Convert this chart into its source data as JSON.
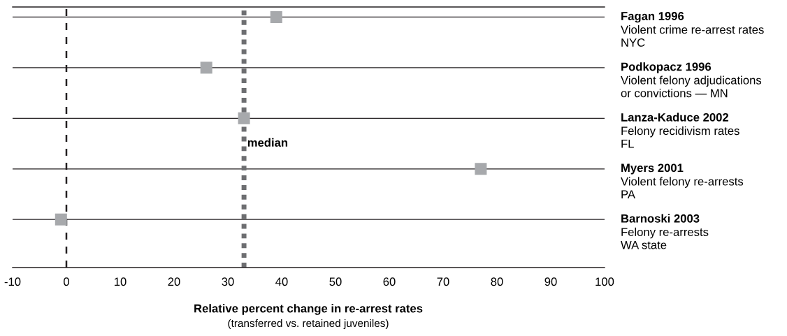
{
  "chart_data": {
    "type": "scatter",
    "orientation": "horizontal",
    "xlabel": "Relative percent change in re-arrest rates",
    "subtitle": "(transferred vs. retained juveniles)",
    "categories": [
      "Fagan 1996\nViolent crime re-arrest rates\nNYC",
      "Podkopacz 1996\nViolent felony adjudications\nor convictions — MN",
      "Lanza-Kaduce 2002\nFelony recidivism rates\nFL",
      "Myers 2001\nViolent felony re-arrests\nPA",
      "Barnoski 2003\nFelony re-arrests\nWA state"
    ],
    "values": [
      39,
      26,
      33,
      77,
      -1
    ],
    "color": "#a7a9ac",
    "marker": "square",
    "grid": "y",
    "xlim": [
      -10,
      100
    ],
    "xticks": [
      -10,
      0,
      10,
      20,
      30,
      40,
      50,
      60,
      70,
      80,
      90,
      100
    ],
    "ref_lines": [
      {
        "axis": "x",
        "value": 0,
        "label": null,
        "color": "#231f20",
        "line_style": "dashed"
      },
      {
        "axis": "x",
        "value": 33,
        "label": "median",
        "color": "#6d6e71",
        "line_style": "dotted"
      }
    ],
    "tick_labels": "x"
  }
}
